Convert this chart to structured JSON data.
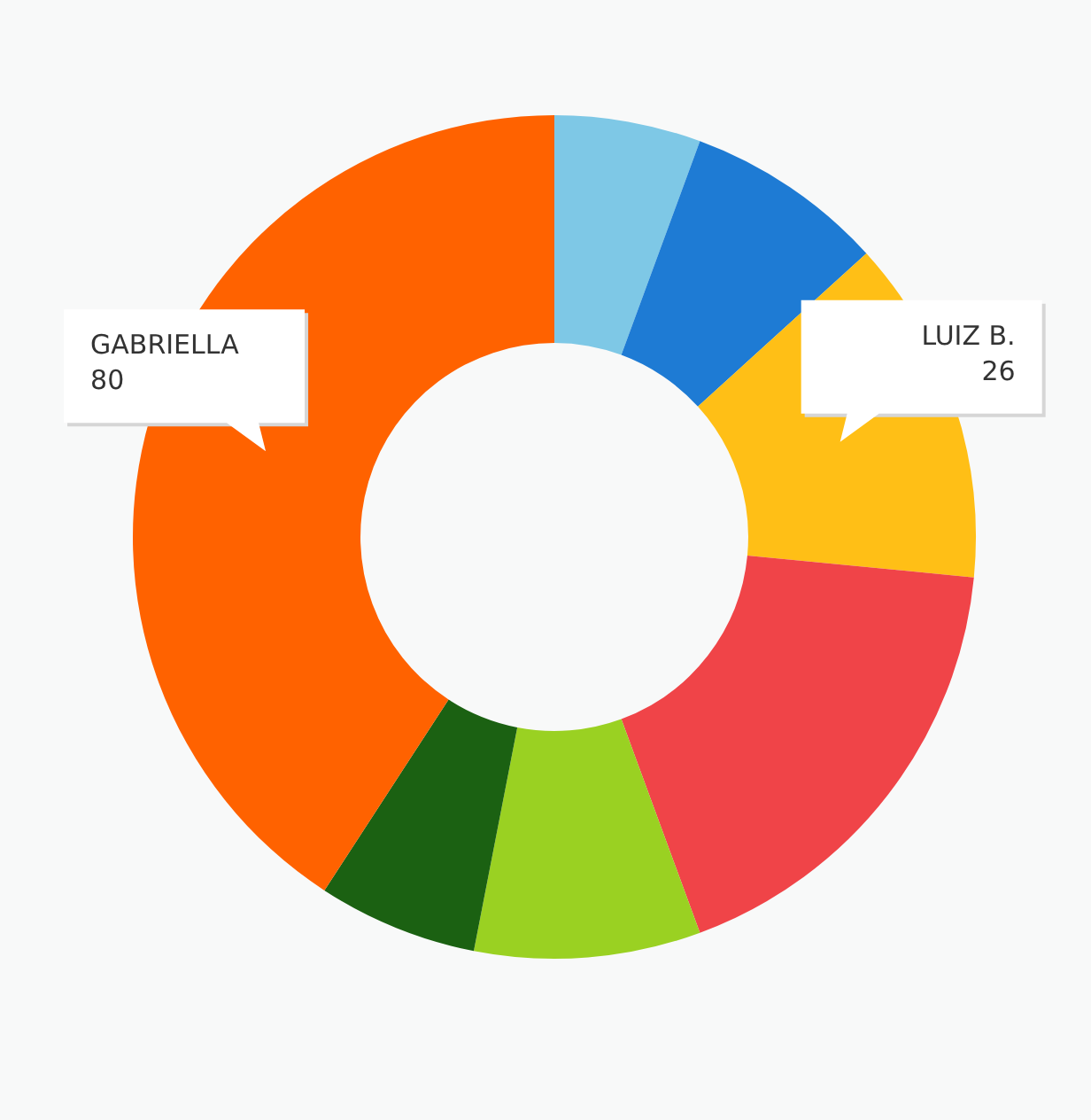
{
  "chart_data": {
    "type": "donut",
    "categories": [
      null,
      null,
      "LUIZ B.",
      null,
      null,
      null,
      "GABRIELLA"
    ],
    "values": [
      11,
      15,
      26,
      35,
      17,
      12,
      80
    ],
    "colors": [
      "#7ec8e6",
      "#1e7bd4",
      "#ffbf16",
      "#f04448",
      "#9ad122",
      "#1b6112",
      "#ff6200"
    ],
    "value_labels": [
      null,
      null,
      "26",
      null,
      null,
      null,
      "80"
    ],
    "legend": false
  }
}
